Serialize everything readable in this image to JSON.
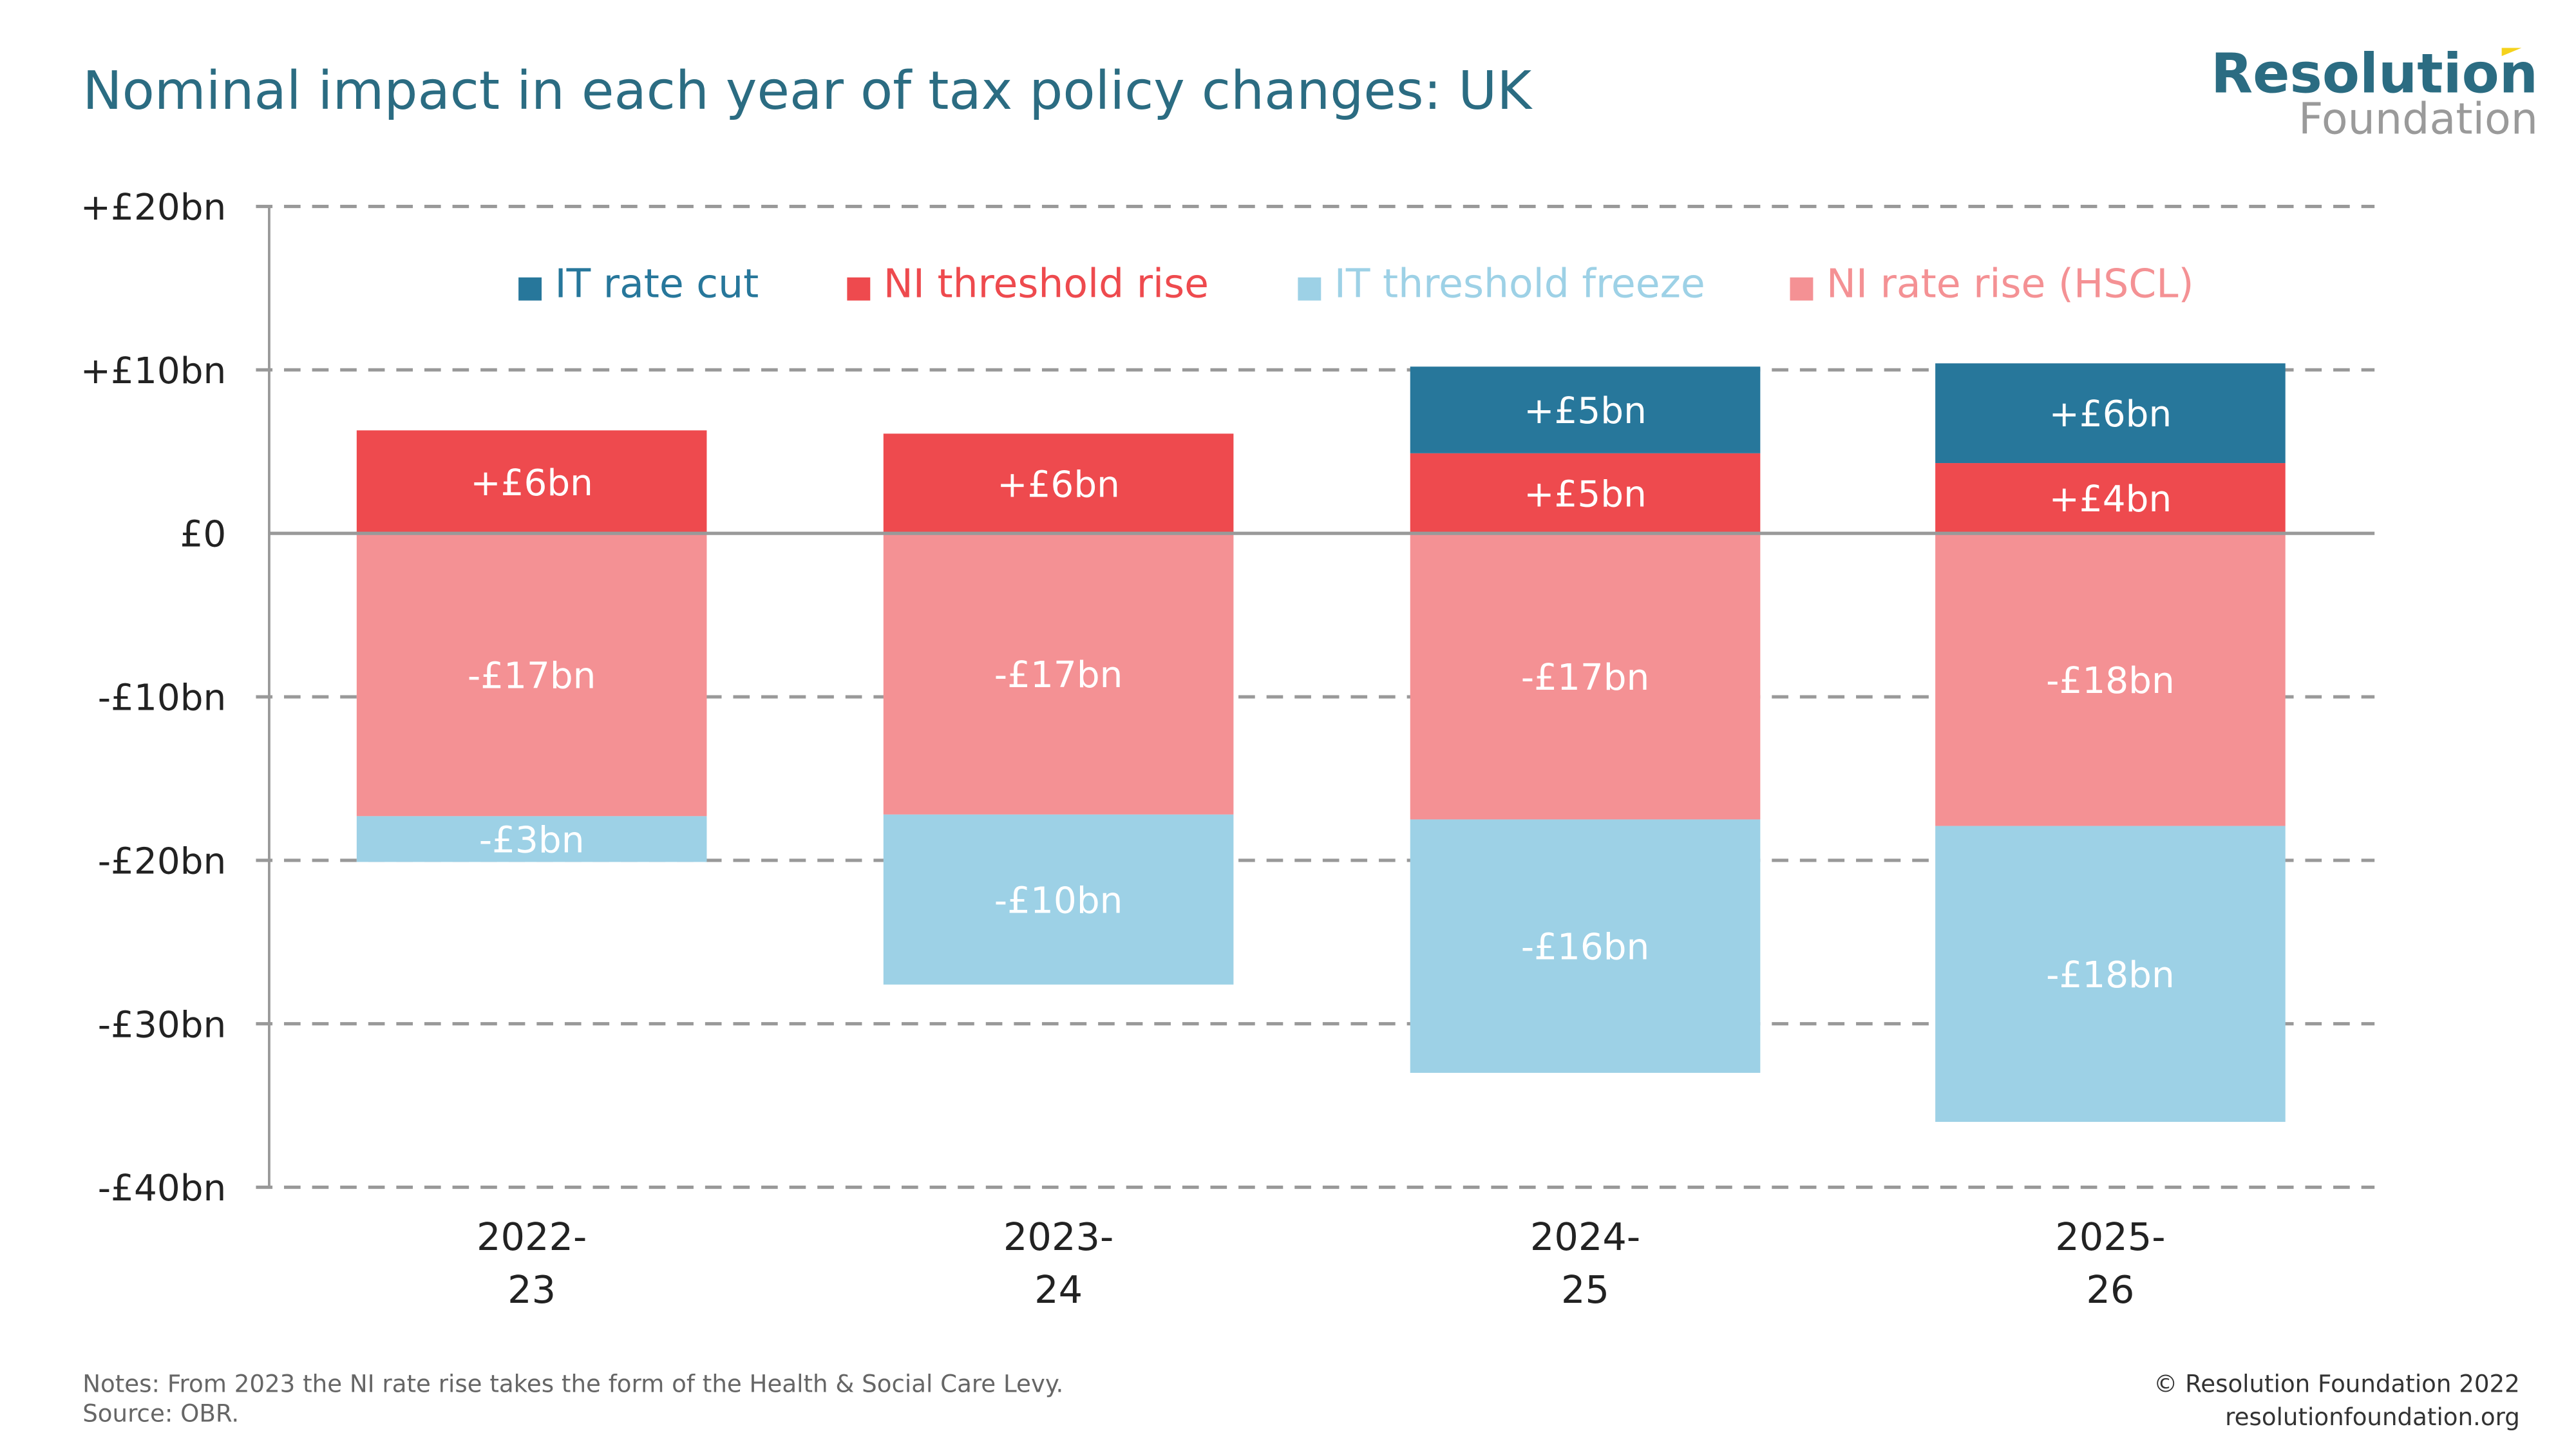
{
  "title": "Nominal impact in each year of tax policy changes: UK",
  "logo": {
    "line1": "Resolution",
    "line2": "Foundation"
  },
  "notes": "Notes: From 2023 the NI rate rise takes the form of the Health & Social Care Levy.",
  "source": "Source: OBR.",
  "copyright": "© Resolution Foundation 2022",
  "website": "resolutionfoundation.org",
  "colors": {
    "title": "#2b6c82",
    "logo_primary": "#2b6c82",
    "logo_secondary": "#9a9a9a",
    "logo_accent": "#f5d21c"
  },
  "chart_data": {
    "type": "bar",
    "stacked": true,
    "title": "Nominal impact in each year of tax policy changes: UK",
    "categories": [
      [
        "2022-",
        "23"
      ],
      [
        "2023-",
        "24"
      ],
      [
        "2024-",
        "25"
      ],
      [
        "2025-",
        "26"
      ]
    ],
    "ylim": [
      -40,
      20
    ],
    "yticks": [
      20,
      10,
      0,
      -10,
      -20,
      -30,
      -40
    ],
    "ytick_labels": [
      "+£20bn",
      "+£10bn",
      "£0",
      "-£10bn",
      "-£20bn",
      "-£30bn",
      "-£40bn"
    ],
    "grid": true,
    "legend_position": "top",
    "series": [
      {
        "name": "IT rate cut",
        "color": "#27779b",
        "values": [
          0,
          0,
          5.3,
          6.1
        ],
        "labels": [
          "",
          "",
          "+£5bn",
          "+£6bn"
        ]
      },
      {
        "name": "NI threshold rise",
        "color": "#ee4a4e",
        "values": [
          6.3,
          6.1,
          4.9,
          4.3
        ],
        "labels": [
          "+£6bn",
          "+£6bn",
          "+£5bn",
          "+£4bn"
        ]
      },
      {
        "name": "IT threshold freeze",
        "color": "#9dd1e6",
        "values": [
          -2.8,
          -10.4,
          -15.5,
          -18.1
        ],
        "labels": [
          "-£3bn",
          "-£10bn",
          "-£16bn",
          "-£18bn"
        ]
      },
      {
        "name": "NI rate rise (HSCL)",
        "color": "#f49194",
        "values": [
          -17.3,
          -17.2,
          -17.5,
          -17.9
        ],
        "labels": [
          "-£17bn",
          "-£17bn",
          "-£17bn",
          "-£18bn"
        ]
      }
    ]
  }
}
